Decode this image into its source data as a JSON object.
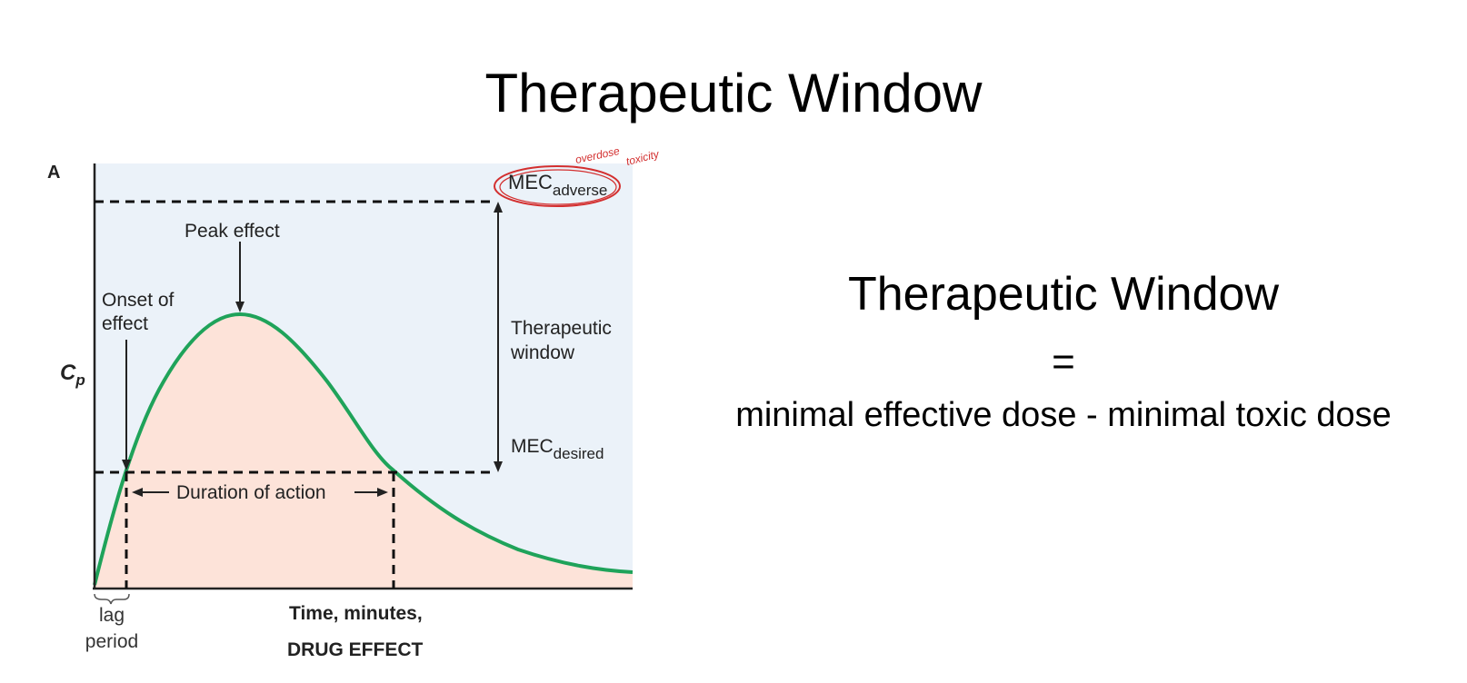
{
  "slide": {
    "title": "Therapeutic Window"
  },
  "figure": {
    "panel_label": "A",
    "y_axis_label_main": "C",
    "y_axis_label_sub": "p",
    "mec_adverse_main": "MEC",
    "mec_adverse_sub": "adverse",
    "mec_desired_main": "MEC",
    "mec_desired_sub": "desired",
    "peak_effect": "Peak effect",
    "onset_line1": "Onset of",
    "onset_line2": "effect",
    "therapeutic_window_line1": "Therapeutic",
    "therapeutic_window_line2": "window",
    "duration_of_action": "Duration of action",
    "lag_line1": "lag",
    "lag_line2": "period",
    "x_axis_label": "Time, minutes,",
    "caption": "DRUG EFFECT",
    "handwritten_note_1": "overdose",
    "handwritten_note_2": "toxicity",
    "colors": {
      "background": "#ebf2f9",
      "under_curve": "#fde3d9",
      "curve": "#1fa35a",
      "annotation": "#d32f2f"
    }
  },
  "definition": {
    "title": "Therapeutic Window",
    "equals": "=",
    "formula": "minimal effective dose - minimal toxic dose"
  }
}
